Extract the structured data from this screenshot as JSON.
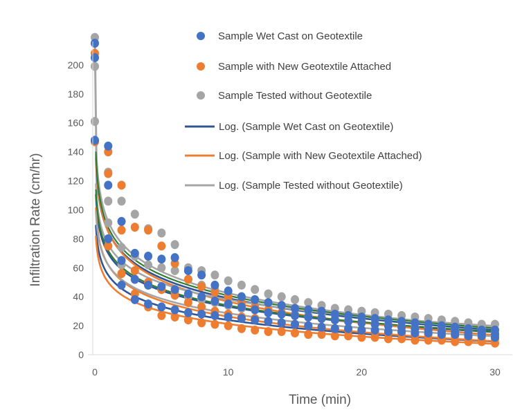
{
  "chart_data": {
    "type": "scatter",
    "title": "",
    "xlabel": "Time (min)",
    "ylabel": "Infiltration Rate (cm/hr)",
    "xlim": [
      0,
      30
    ],
    "ylim": [
      0,
      220
    ],
    "xticks": [
      0,
      10,
      20,
      30
    ],
    "yticks": [
      0,
      20,
      40,
      60,
      80,
      100,
      120,
      140,
      160,
      180,
      200
    ],
    "grid": false,
    "legend_position": "top-right",
    "series": [
      {
        "name": "Sample Wet Cast on Geotextile",
        "kind": "points",
        "color": "#4472C4",
        "x": [
          0,
          0,
          0,
          1,
          1,
          1,
          2,
          2,
          2,
          3,
          3,
          3,
          4,
          4,
          4,
          5,
          5,
          5,
          6,
          6,
          6,
          7,
          7,
          7,
          8,
          8,
          8,
          9,
          9,
          9,
          10,
          10,
          10,
          11,
          11,
          11,
          12,
          12,
          12,
          13,
          13,
          13,
          14,
          14,
          14,
          15,
          15,
          15,
          16,
          16,
          16,
          17,
          17,
          17,
          18,
          18,
          18,
          19,
          19,
          19,
          20,
          20,
          20,
          21,
          21,
          21,
          22,
          22,
          22,
          23,
          23,
          23,
          24,
          24,
          24,
          25,
          25,
          25,
          26,
          26,
          26,
          27,
          27,
          27,
          28,
          28,
          28,
          29,
          29,
          29,
          30,
          30,
          30
        ],
        "y": [
          215,
          205,
          148,
          144,
          117,
          80,
          92,
          65,
          48,
          70,
          52,
          38,
          68,
          48,
          35,
          66,
          47,
          33,
          67,
          45,
          31,
          58,
          42,
          29,
          55,
          40,
          28,
          48,
          37,
          27,
          44,
          35,
          26,
          40,
          33,
          25,
          38,
          31,
          24,
          36,
          29,
          23,
          34,
          28,
          22,
          32,
          27,
          21,
          31,
          26,
          20,
          30,
          25,
          19,
          28,
          24,
          18,
          27,
          23,
          18,
          26,
          22,
          17,
          25,
          21,
          17,
          24,
          20,
          16,
          23,
          19,
          16,
          22,
          18,
          15,
          21,
          17,
          15,
          20,
          16,
          14,
          19,
          16,
          14,
          18,
          15,
          13,
          17,
          15,
          13,
          17,
          14,
          12
        ]
      },
      {
        "name": "Sample with New Geotextile Attached",
        "kind": "points",
        "color": "#ED7D31",
        "x": [
          0,
          0,
          1,
          1,
          1,
          2,
          2,
          2,
          3,
          3,
          3,
          4,
          4,
          4,
          5,
          5,
          5,
          6,
          6,
          6,
          7,
          7,
          7,
          8,
          8,
          8,
          9,
          9,
          9,
          10,
          10,
          10,
          11,
          11,
          11,
          12,
          12,
          12,
          13,
          13,
          13,
          14,
          14,
          14,
          15,
          15,
          15,
          16,
          16,
          16,
          17,
          17,
          17,
          18,
          18,
          18,
          19,
          19,
          19,
          20,
          20,
          20,
          21,
          21,
          21,
          22,
          22,
          22,
          23,
          23,
          23,
          24,
          24,
          24,
          25,
          25,
          25,
          26,
          26,
          26,
          27,
          27,
          27,
          28,
          28,
          28,
          29,
          29,
          29,
          30,
          30,
          30
        ],
        "y": [
          208,
          147,
          140,
          125,
          75,
          117,
          86,
          56,
          88,
          58,
          42,
          86,
          50,
          33,
          75,
          45,
          27,
          63,
          41,
          26,
          52,
          36,
          24,
          47,
          33,
          22,
          43,
          30,
          21,
          40,
          28,
          20,
          36,
          26,
          18,
          33,
          25,
          17,
          31,
          23,
          16,
          29,
          22,
          16,
          27,
          21,
          15,
          26,
          20,
          14,
          25,
          19,
          14,
          24,
          18,
          13,
          23,
          17,
          13,
          22,
          17,
          12,
          21,
          16,
          12,
          20,
          15,
          11,
          19,
          15,
          11,
          18,
          14,
          10,
          17,
          14,
          10,
          17,
          13,
          10,
          16,
          13,
          9,
          15,
          12,
          9,
          15,
          12,
          9,
          14,
          11,
          8
        ]
      },
      {
        "name": "Sample Tested without Geotextile",
        "kind": "points",
        "color": "#A5A5A5",
        "x": [
          0,
          0,
          0,
          1,
          1,
          1,
          2,
          2,
          2,
          3,
          3,
          3,
          4,
          4,
          4,
          5,
          5,
          5,
          6,
          6,
          6,
          7,
          7,
          7,
          8,
          8,
          8,
          9,
          9,
          9,
          10,
          10,
          10,
          11,
          11,
          11,
          12,
          12,
          12,
          13,
          13,
          13,
          14,
          14,
          14,
          15,
          15,
          15,
          16,
          16,
          16,
          17,
          17,
          17,
          18,
          18,
          18,
          19,
          19,
          19,
          20,
          20,
          20,
          21,
          21,
          21,
          22,
          22,
          22,
          23,
          23,
          23,
          24,
          24,
          24,
          25,
          25,
          25,
          26,
          26,
          26,
          27,
          27,
          27,
          28,
          28,
          28,
          29,
          29,
          29,
          30,
          30,
          30
        ],
        "y": [
          219,
          199,
          161,
          126,
          106,
          91,
          106,
          74,
          62,
          97,
          68,
          52,
          87,
          62,
          48,
          84,
          60,
          45,
          76,
          58,
          43,
          60,
          52,
          40,
          58,
          48,
          38,
          55,
          45,
          36,
          51,
          42,
          34,
          48,
          40,
          32,
          45,
          38,
          31,
          42,
          36,
          30,
          40,
          34,
          29,
          38,
          32,
          28,
          36,
          30,
          27,
          34,
          29,
          26,
          32,
          28,
          25,
          31,
          27,
          24,
          30,
          26,
          23,
          29,
          25,
          22,
          28,
          24,
          21,
          27,
          23,
          20,
          26,
          22,
          19,
          25,
          21,
          19,
          24,
          20,
          18,
          23,
          19,
          17,
          22,
          19,
          16,
          21,
          18,
          16,
          21,
          17,
          15
        ]
      },
      {
        "name": "Log. (Sample Wet Cast on Geotextile)",
        "kind": "log_trend",
        "color": "#2F5597",
        "curves": [
          {
            "a": 55,
            "b": 13.5
          },
          {
            "a": 70,
            "b": 16.0
          },
          {
            "a": 85,
            "b": 20.0
          }
        ]
      },
      {
        "name": "Log. (Sample with New Geotextile Attached)",
        "kind": "log_trend",
        "color": "#ED7D31",
        "curves": [
          {
            "a": 50,
            "b": 12.5
          },
          {
            "a": 62,
            "b": 15.5
          },
          {
            "a": 85,
            "b": 21.0
          }
        ]
      },
      {
        "name": "Log. (Sample Tested without Geotextile)",
        "kind": "log_trend",
        "color": "#A5A5A5",
        "curves": [
          {
            "a": 62,
            "b": 14.5
          },
          {
            "a": 76,
            "b": 16.5
          },
          {
            "a": 92,
            "b": 21.5
          }
        ]
      }
    ],
    "extra_trend_colors": [
      "#2E7D32"
    ],
    "extra_trend_curves": [
      {
        "a": 72,
        "b": 16.5
      },
      {
        "a": 88,
        "b": 20.5
      }
    ]
  }
}
